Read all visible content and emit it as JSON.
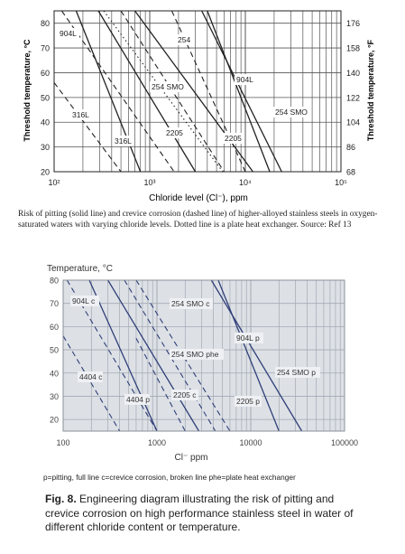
{
  "chart_data": [
    {
      "type": "line",
      "xlabel": "Chloride level (Cl⁻), ppm",
      "ylabel": "Threshold temperature, °C",
      "ylabel_right": "Threshold temperature, °F",
      "x_scale": "log",
      "xlim": [
        100,
        100000
      ],
      "ylim": [
        20,
        85
      ],
      "x_ticks": [
        "10²",
        "10³",
        "10⁴",
        "10⁵"
      ],
      "y_ticks": [
        "20",
        "30",
        "40",
        "50",
        "60",
        "70",
        "80"
      ],
      "y_ticks_right": [
        "68",
        "86",
        "104",
        "122",
        "140",
        "158",
        "176"
      ],
      "grid": true,
      "series": [
        {
          "name": "316L",
          "style": "solid",
          "points": [
            [
              170,
              85
            ],
            [
              800,
              20
            ]
          ]
        },
        {
          "name": "316L",
          "style": "dashed",
          "points": [
            [
              100,
              56
            ],
            [
              500,
              20
            ]
          ]
        },
        {
          "name": "904L",
          "style": "solid",
          "points": [
            [
              290,
              85
            ],
            [
              3000,
              20
            ]
          ]
        },
        {
          "name": "904L",
          "style": "dashed",
          "points": [
            [
              120,
              85
            ],
            [
              1800,
              20
            ]
          ]
        },
        {
          "name": "254",
          "style": "solid",
          "points": [
            [
              4000,
              85
            ],
            [
              18000,
              20
            ]
          ]
        },
        {
          "name": "254 SMO",
          "style": "solid",
          "points": [
            [
              3500,
              85
            ],
            [
              24000,
              20
            ]
          ]
        },
        {
          "name": "254",
          "style": "dashed",
          "points": [
            [
              1700,
              85
            ],
            [
              10000,
              20
            ]
          ]
        },
        {
          "name": "2205",
          "style": "solid",
          "points": [
            [
              700,
              85
            ],
            [
              12000,
              20
            ]
          ]
        },
        {
          "name": "2205",
          "style": "dashed",
          "points": [
            [
              500,
              85
            ],
            [
              6000,
              20
            ]
          ]
        },
        {
          "name": "254 SMO",
          "style": "dotted",
          "points": [
            [
              330,
              85
            ],
            [
              5800,
              20
            ]
          ]
        }
      ],
      "annotations": [
        "904L",
        "254",
        "254 SMO",
        "904L",
        "254 SMO",
        "316L",
        "2205",
        "316L",
        "2205"
      ]
    },
    {
      "type": "line",
      "ylabel": "Temperature, °C",
      "xlabel": "Cl⁻ ppm",
      "x_scale": "log",
      "xlim": [
        100,
        100000
      ],
      "ylim": [
        15,
        80
      ],
      "x_ticks": [
        "100",
        "1000",
        "10000",
        "100000"
      ],
      "y_ticks": [
        "20",
        "30",
        "40",
        "50",
        "60",
        "70",
        "80"
      ],
      "grid": true,
      "background": "#dde1e6",
      "series": [
        {
          "name": "904L c",
          "style": "dashed",
          "points": [
            [
              110,
              80
            ],
            [
              1000,
              15
            ]
          ]
        },
        {
          "name": "904L p",
          "style": "solid",
          "points": [
            [
              300,
              80
            ],
            [
              2800,
              15
            ]
          ]
        },
        {
          "name": "254 SMO c",
          "style": "dashed",
          "points": [
            [
              600,
              80
            ],
            [
              6000,
              15
            ]
          ]
        },
        {
          "name": "254 SMO phe",
          "style": "dashed",
          "points": [
            [
              450,
              80
            ],
            [
              4200,
              15
            ]
          ]
        },
        {
          "name": "254 SMO p",
          "style": "solid",
          "points": [
            [
              4500,
              80
            ],
            [
              20000,
              15
            ]
          ]
        },
        {
          "name": "4404 c",
          "style": "dashed",
          "points": [
            [
              100,
              56
            ],
            [
              400,
              15
            ]
          ]
        },
        {
          "name": "4404 p",
          "style": "solid",
          "points": [
            [
              190,
              80
            ],
            [
              1000,
              15
            ]
          ]
        },
        {
          "name": "2205 c",
          "style": "dashed",
          "points": [
            [
              600,
              55
            ],
            [
              2000,
              15
            ]
          ]
        },
        {
          "name": "2205 p",
          "style": "solid",
          "points": [
            [
              3800,
              80
            ],
            [
              35000,
              15
            ]
          ]
        }
      ],
      "annotations": [
        "904L c",
        "254 SMO c",
        "904L p",
        "254 SMO phe",
        "254 SMO p",
        "4404 c",
        "4404 p",
        "2205 c",
        "2205 p"
      ]
    }
  ],
  "chart1_caption": "Risk of pitting (solid line) and crevice corrosion (dashed line) of higher-alloyed stainless steels in oxygen-saturated waters with varying chloride levels. Dotted line is a plate heat exchanger. Source: Ref 13",
  "chart2_legend": "p=pitting, full line  c=crevice corrosion, broken line  phe=plate heat exchanger",
  "figure_caption": {
    "label": "Fig. 8.",
    "text": "Engineering diagram illustrating the risk of pitting and crevice corrosion on high performance stainless steel in water of different chloride content or temperature."
  },
  "colors": {
    "chart1_lines": "#222222",
    "chart2_lines": "#2f3f78",
    "chart2_background": "#dde1e6",
    "chart2_grid": "#9aa0aa"
  }
}
